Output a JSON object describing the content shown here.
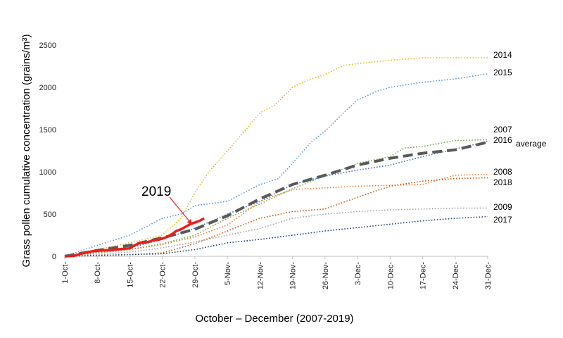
{
  "chart_data": {
    "type": "line",
    "title": "",
    "xlabel": "October – December (2007-2019)",
    "ylabel": "Grass pollen cumulative concentration (grains/m³)",
    "xlim": [
      1,
      92
    ],
    "ylim": [
      0,
      2500
    ],
    "y_ticks": [
      "0",
      "500",
      "1000",
      "1500",
      "2000",
      "2500"
    ],
    "y_tick_values": [
      0,
      500,
      1000,
      1500,
      2000,
      2500
    ],
    "x_tick_labels": [
      "1-Oct",
      "8-Oct",
      "15-Oct",
      "22-Oct",
      "29-Oct",
      "5-Nov",
      "12-Nov",
      "19-Nov",
      "26-Nov",
      "3-Dec",
      "10-Dec",
      "17-Dec",
      "24-Dec",
      "31-Dec"
    ],
    "x_tick_days": [
      1,
      8,
      15,
      22,
      29,
      36,
      43,
      50,
      57,
      64,
      71,
      78,
      85,
      92
    ],
    "grid": false,
    "legend": "labels at line ends",
    "annotation": {
      "text": "2019",
      "arrow_to_day": 29,
      "arrow_to_value": 460
    },
    "series": [
      {
        "name": "2014",
        "color": "#f2b81c",
        "style": "dotted",
        "x": [
          1,
          8,
          15,
          22,
          26,
          29,
          32,
          36,
          40,
          43,
          46,
          50,
          53,
          57,
          61,
          64,
          71,
          78,
          85,
          92
        ],
        "values": [
          0,
          80,
          160,
          250,
          450,
          750,
          1000,
          1250,
          1500,
          1700,
          1780,
          2000,
          2080,
          2150,
          2260,
          2280,
          2320,
          2350,
          2350,
          2350
        ]
      },
      {
        "name": "2015",
        "color": "#5b9bd5",
        "style": "dotted",
        "x": [
          1,
          8,
          15,
          22,
          26,
          29,
          36,
          43,
          47,
          50,
          54,
          57,
          61,
          64,
          68,
          71,
          78,
          85,
          92
        ],
        "values": [
          0,
          130,
          250,
          450,
          500,
          600,
          650,
          850,
          920,
          1100,
          1350,
          1480,
          1700,
          1850,
          1950,
          2000,
          2060,
          2100,
          2160
        ]
      },
      {
        "name": "2007",
        "color": "#70ad47",
        "style": "dotted",
        "x": [
          1,
          8,
          15,
          22,
          29,
          36,
          43,
          50,
          57,
          64,
          71,
          74,
          78,
          85,
          92
        ],
        "values": [
          0,
          40,
          80,
          150,
          250,
          450,
          620,
          800,
          950,
          1100,
          1180,
          1280,
          1300,
          1370,
          1380
        ]
      },
      {
        "name": "2016",
        "color": "#4472c4",
        "style": "dotted",
        "x": [
          1,
          8,
          15,
          22,
          29,
          36,
          43,
          50,
          57,
          64,
          71,
          78,
          85,
          92
        ],
        "values": [
          0,
          50,
          100,
          200,
          330,
          500,
          650,
          850,
          950,
          1020,
          1080,
          1180,
          1270,
          1360
        ]
      },
      {
        "name": "average",
        "color": "#595959",
        "style": "dashed",
        "x": [
          1,
          8,
          15,
          22,
          29,
          36,
          43,
          50,
          57,
          64,
          71,
          78,
          85,
          92
        ],
        "values": [
          0,
          70,
          130,
          220,
          320,
          480,
          680,
          850,
          960,
          1080,
          1160,
          1220,
          1260,
          1350
        ]
      },
      {
        "name": "2008",
        "color": "#ed7d31",
        "style": "dotted",
        "x": [
          1,
          8,
          15,
          22,
          29,
          36,
          43,
          50,
          57,
          64,
          71,
          78,
          85,
          92
        ],
        "values": [
          0,
          40,
          80,
          140,
          230,
          370,
          650,
          790,
          810,
          830,
          840,
          850,
          960,
          970
        ]
      },
      {
        "name": "2018",
        "color": "#c55a11",
        "style": "dotted",
        "x": [
          1,
          8,
          15,
          22,
          29,
          36,
          43,
          50,
          57,
          64,
          71,
          78,
          85,
          92
        ],
        "values": [
          0,
          10,
          20,
          40,
          150,
          300,
          450,
          530,
          560,
          700,
          830,
          890,
          920,
          930
        ]
      },
      {
        "name": "2009",
        "color": "#a5a5a5",
        "style": "dotted",
        "x": [
          1,
          8,
          15,
          22,
          29,
          36,
          43,
          50,
          57,
          64,
          71,
          78,
          85,
          92
        ],
        "values": [
          0,
          20,
          50,
          100,
          170,
          250,
          330,
          450,
          500,
          530,
          550,
          560,
          570,
          570
        ]
      },
      {
        "name": "2017",
        "color": "#264478",
        "style": "dotted",
        "x": [
          1,
          8,
          15,
          22,
          29,
          36,
          43,
          50,
          57,
          64,
          71,
          78,
          85,
          92
        ],
        "values": [
          0,
          10,
          20,
          30,
          80,
          160,
          200,
          250,
          300,
          340,
          380,
          420,
          450,
          470
        ]
      },
      {
        "name": "2019",
        "color": "#ee1c1c",
        "style": "solid",
        "x": [
          1,
          3,
          5,
          7,
          9,
          11,
          13,
          15,
          16,
          17,
          18,
          19,
          20,
          21,
          22,
          23,
          24,
          25,
          26,
          27,
          28,
          29,
          30,
          31
        ],
        "values": [
          0,
          5,
          40,
          60,
          70,
          75,
          85,
          95,
          130,
          155,
          160,
          170,
          190,
          195,
          210,
          230,
          260,
          300,
          320,
          350,
          380,
          400,
          420,
          450
        ]
      }
    ]
  }
}
